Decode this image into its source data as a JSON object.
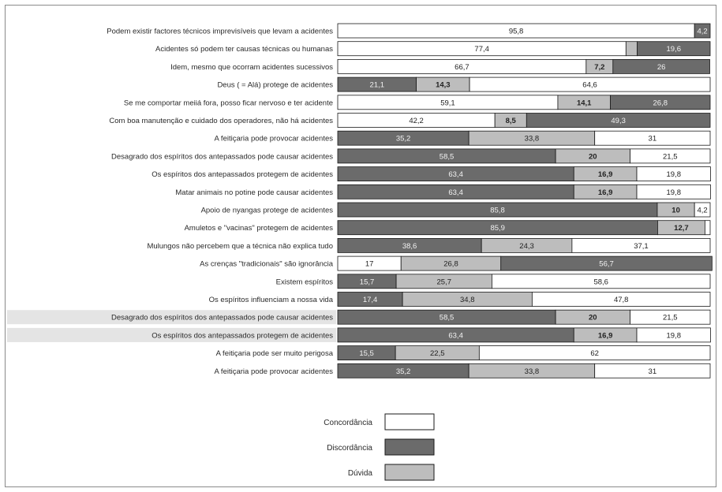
{
  "chart_data": {
    "type": "bar",
    "orientation": "horizontal-stacked-100",
    "x_range": [
      0,
      100
    ],
    "grid": false,
    "legend_position": "bottom-center",
    "series": [
      {
        "name": "Concordância",
        "color": "#ffffff"
      },
      {
        "name": "Discordância",
        "color": "#6b6b6b"
      },
      {
        "name": "Dúvida",
        "color": "#bdbdbd"
      }
    ],
    "rows": [
      {
        "label": "Podem existir factores técnicos imprevisíveis que levam a acidentes",
        "segments": [
          {
            "series": "Concordância",
            "value": 95.8,
            "text": "95,8"
          },
          {
            "series": "Discordância",
            "value": 4.2,
            "text": "4,2"
          }
        ]
      },
      {
        "label": "Acidentes só podem ter causas técnicas ou humanas",
        "segments": [
          {
            "series": "Concordância",
            "value": 77.4,
            "text": "77,4"
          },
          {
            "series": "Dúvida",
            "value": 3.0,
            "text": ""
          },
          {
            "series": "Discordância",
            "value": 19.6,
            "text": "19,6"
          }
        ]
      },
      {
        "label": "Idem, mesmo que ocorram acidentes sucessivos",
        "segments": [
          {
            "series": "Concordância",
            "value": 66.7,
            "text": "66,7"
          },
          {
            "series": "Dúvida",
            "value": 7.2,
            "text": "7,2"
          },
          {
            "series": "Discordância",
            "value": 26,
            "text": "26"
          }
        ]
      },
      {
        "label": "Deus ( = Alá) protege de acidentes",
        "segments": [
          {
            "series": "Discordância",
            "value": 21.1,
            "text": "21,1"
          },
          {
            "series": "Dúvida",
            "value": 14.3,
            "text": "14,3"
          },
          {
            "series": "Concordância",
            "value": 64.6,
            "text": "64,6"
          }
        ]
      },
      {
        "label": "Se me comportar meiiá fora, posso ficar nervoso e ter acidente",
        "segments": [
          {
            "series": "Concordância",
            "value": 59.1,
            "text": "59,1"
          },
          {
            "series": "Dúvida",
            "value": 14.1,
            "text": "14,1"
          },
          {
            "series": "Discordância",
            "value": 26.8,
            "text": "26,8"
          }
        ]
      },
      {
        "label": "Com boa manutenção e cuidado dos operadores, não há acidentes",
        "segments": [
          {
            "series": "Concordância",
            "value": 42.2,
            "text": "42,2"
          },
          {
            "series": "Dúvida",
            "value": 8.5,
            "text": "8,5"
          },
          {
            "series": "Discordância",
            "value": 49.3,
            "text": "49,3"
          }
        ]
      },
      {
        "label": "A feitiçaria pode provocar acidentes",
        "segments": [
          {
            "series": "Discordância",
            "value": 35.2,
            "text": "35,2"
          },
          {
            "series": "Dúvida",
            "value": 33.8,
            "text": "33,8"
          },
          {
            "series": "Concordância",
            "value": 31,
            "text": "31"
          }
        ]
      },
      {
        "label": "Desagrado dos espíritos dos antepassados pode causar acidentes",
        "segments": [
          {
            "series": "Discordância",
            "value": 58.5,
            "text": "58,5"
          },
          {
            "series": "Dúvida",
            "value": 20,
            "text": "20"
          },
          {
            "series": "Concordância",
            "value": 21.5,
            "text": "21,5"
          }
        ]
      },
      {
        "label": "Os espíritos dos antepassados protegem de acidentes",
        "segments": [
          {
            "series": "Discordância",
            "value": 63.4,
            "text": "63,4"
          },
          {
            "series": "Dúvida",
            "value": 16.9,
            "text": "16,9"
          },
          {
            "series": "Concordância",
            "value": 19.8,
            "text": "19,8"
          }
        ]
      },
      {
        "label": "Matar animais no potine pode causar acidentes",
        "segments": [
          {
            "series": "Discordância",
            "value": 63.4,
            "text": "63,4"
          },
          {
            "series": "Dúvida",
            "value": 16.9,
            "text": "16,9"
          },
          {
            "series": "Concordância",
            "value": 19.8,
            "text": "19,8"
          }
        ]
      },
      {
        "label": "Apoio de nyangas protege de acidentes",
        "segments": [
          {
            "series": "Discordância",
            "value": 85.8,
            "text": "85,8"
          },
          {
            "series": "Dúvida",
            "value": 10,
            "text": "10"
          },
          {
            "series": "Concordância",
            "value": 4.2,
            "text": "4,2"
          }
        ]
      },
      {
        "label": "Amuletos e \"vacinas\" protegem de acidentes",
        "segments": [
          {
            "series": "Discordância",
            "value": 85.9,
            "text": "85,9"
          },
          {
            "series": "Dúvida",
            "value": 12.7,
            "text": "12,7"
          },
          {
            "series": "Concordância",
            "value": 1.4,
            "text": ""
          }
        ]
      },
      {
        "label": "Mulungos não percebem que a técnica não explica tudo",
        "segments": [
          {
            "series": "Discordância",
            "value": 38.6,
            "text": "38,6"
          },
          {
            "series": "Dúvida",
            "value": 24.3,
            "text": "24,3"
          },
          {
            "series": "Concordância",
            "value": 37.1,
            "text": "37,1"
          }
        ]
      },
      {
        "label": "As crenças \"tradicionais\" são ignorância",
        "segments": [
          {
            "series": "Concordância",
            "value": 17,
            "text": "17"
          },
          {
            "series": "Dúvida",
            "value": 26.8,
            "text": "26,8"
          },
          {
            "series": "Discordância",
            "value": 56.7,
            "text": "56,7"
          }
        ]
      },
      {
        "label": "Existem espíritos",
        "segments": [
          {
            "series": "Discordância",
            "value": 15.7,
            "text": "15,7"
          },
          {
            "series": "Dúvida",
            "value": 25.7,
            "text": "25,7"
          },
          {
            "series": "Concordância",
            "value": 58.6,
            "text": "58,6"
          }
        ]
      },
      {
        "label": "Os espíritos influenciam a nossa vida",
        "segments": [
          {
            "series": "Discordância",
            "value": 17.4,
            "text": "17,4"
          },
          {
            "series": "Dúvida",
            "value": 34.8,
            "text": "34,8"
          },
          {
            "series": "Concordância",
            "value": 47.8,
            "text": "47,8"
          }
        ]
      },
      {
        "label": "Desagrado dos espíritos dos antepassados pode causar acidentes",
        "segments": [
          {
            "series": "Discordância",
            "value": 58.5,
            "text": "58,5"
          },
          {
            "series": "Dúvida",
            "value": 20,
            "text": "20"
          },
          {
            "series": "Concordância",
            "value": 21.5,
            "text": "21,5"
          }
        ]
      },
      {
        "label": "Os espíritos dos antepassados protegem de acidentes",
        "segments": [
          {
            "series": "Discordância",
            "value": 63.4,
            "text": "63,4"
          },
          {
            "series": "Dúvida",
            "value": 16.9,
            "text": "16,9"
          },
          {
            "series": "Concordância",
            "value": 19.8,
            "text": "19,8"
          }
        ]
      },
      {
        "label": "A feitiçaria pode ser muito perigosa",
        "segments": [
          {
            "series": "Discordância",
            "value": 15.5,
            "text": "15,5"
          },
          {
            "series": "Dúvida",
            "value": 22.5,
            "text": "22,5"
          },
          {
            "series": "Concordância",
            "value": 62,
            "text": "62"
          }
        ]
      },
      {
        "label": "A feitiçaria pode provocar acidentes",
        "segments": [
          {
            "series": "Discordância",
            "value": 35.2,
            "text": "35,2"
          },
          {
            "series": "Dúvida",
            "value": 33.8,
            "text": "33,8"
          },
          {
            "series": "Concordância",
            "value": 31,
            "text": "31"
          }
        ]
      }
    ],
    "highlighted_rows": [
      16,
      17
    ]
  }
}
